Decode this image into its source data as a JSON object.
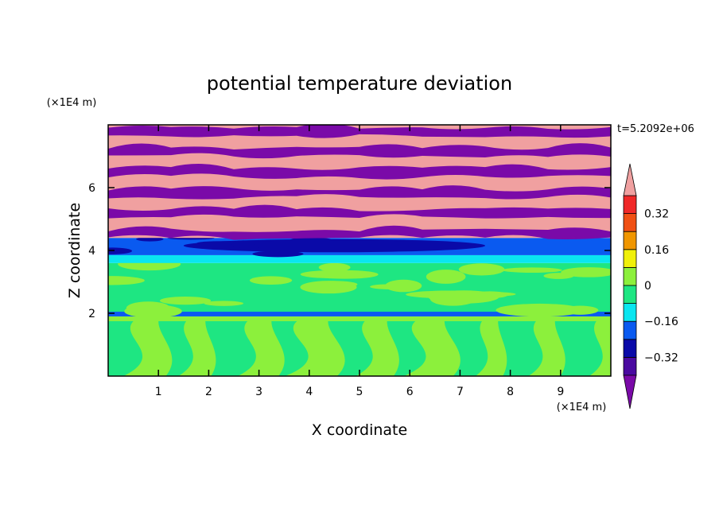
{
  "chart_data": {
    "type": "heatmap",
    "title": "potential temperature deviation",
    "xlabel": "X coordinate",
    "ylabel": "Z coordinate",
    "x_units": "(×1E4 m)",
    "y_units": "(×1E4 m)",
    "time_label": "t=5.2092e+06",
    "xlim": [
      0,
      10
    ],
    "ylim": [
      0,
      8
    ],
    "x_ticks": [
      "1",
      "2",
      "3",
      "4",
      "5",
      "6",
      "7",
      "8",
      "9"
    ],
    "y_ticks": [
      "2",
      "4",
      "6"
    ],
    "colorbar": {
      "levels": [
        -0.4,
        -0.32,
        -0.24,
        -0.16,
        -0.08,
        0,
        0.08,
        0.16,
        0.24,
        0.32,
        0.4
      ],
      "tick_labels": [
        "0.32",
        "0.16",
        "0",
        "−0.16",
        "−0.32"
      ],
      "tick_values": [
        0.32,
        0.16,
        0,
        -0.16,
        -0.32
      ],
      "colors": {
        "below": "#7a0aa8",
        "b1": "#4a0aa0",
        "b2": "#0a0aa8",
        "b3": "#0a5af0",
        "b4": "#0ae6f0",
        "b5": "#1ee682",
        "b6": "#8cf03c",
        "b7": "#f0f00a",
        "b8": "#f09600",
        "b9": "#f05014",
        "b10": "#f02828",
        "above": "#f0a0a0"
      }
    },
    "bands": [
      {
        "z_from": 0.0,
        "z_to": 1.9,
        "pattern": "plumes",
        "base": "#1ee682",
        "alt": "#8cf03c"
      },
      {
        "z_from": 1.9,
        "z_to": 2.05,
        "pattern": "line",
        "base": "#0a5af0"
      },
      {
        "z_from": 2.05,
        "z_to": 3.6,
        "pattern": "patches",
        "base": "#1ee682",
        "alt": "#8cf03c"
      },
      {
        "z_from": 3.6,
        "z_to": 3.85,
        "pattern": "solid",
        "base": "#0ae6f0"
      },
      {
        "z_from": 3.85,
        "z_to": 4.4,
        "pattern": "blue-layer",
        "base": "#0a5af0",
        "alt": "#0a0aa8"
      },
      {
        "z_from": 4.4,
        "z_to": 8.0,
        "pattern": "stripes",
        "base": "#f0a0a0",
        "alt": "#7a0aa8"
      }
    ]
  }
}
